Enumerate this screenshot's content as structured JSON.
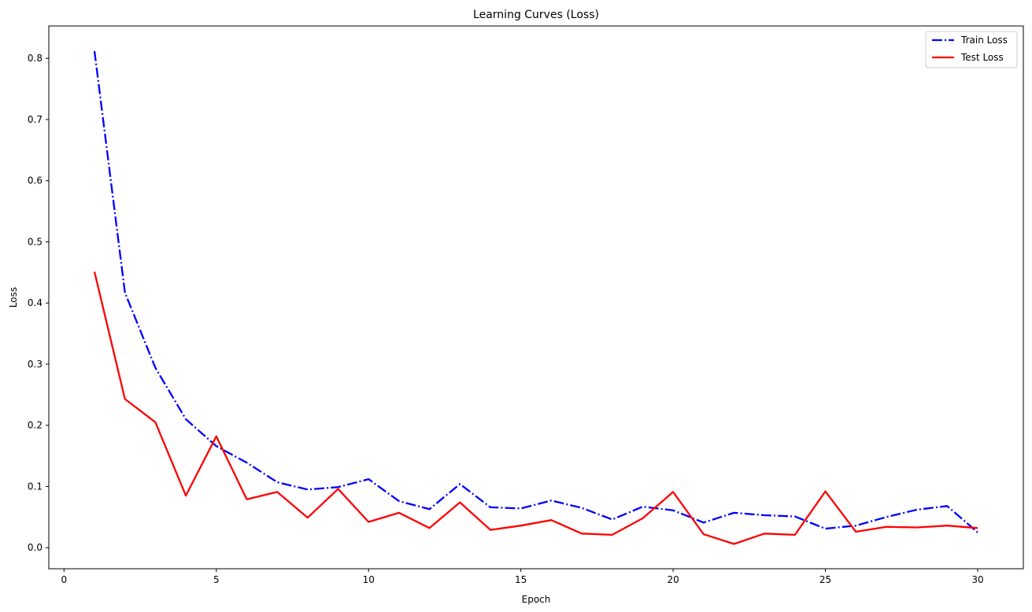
{
  "chart_data": {
    "type": "line",
    "title": "Learning Curves (Loss)",
    "xlabel": "Epoch",
    "ylabel": "Loss",
    "xlim": [
      -0.5,
      31.5
    ],
    "ylim": [
      -0.0345,
      0.853
    ],
    "xticks": [
      0,
      5,
      10,
      15,
      20,
      25,
      30
    ],
    "xtick_labels": [
      "0",
      "5",
      "10",
      "15",
      "20",
      "25",
      "30"
    ],
    "yticks": [
      0.0,
      0.1,
      0.2,
      0.3,
      0.4,
      0.5,
      0.6,
      0.7,
      0.8
    ],
    "ytick_labels": [
      "0.0",
      "0.1",
      "0.2",
      "0.3",
      "0.4",
      "0.5",
      "0.6",
      "0.7",
      "0.8"
    ],
    "grid": false,
    "legend_position": "top-right",
    "x": [
      1,
      2,
      3,
      4,
      5,
      6,
      7,
      8,
      9,
      10,
      11,
      12,
      13,
      14,
      15,
      16,
      17,
      18,
      19,
      20,
      21,
      22,
      23,
      24,
      25,
      26,
      27,
      28,
      29,
      30
    ],
    "series": [
      {
        "name": "Train Loss",
        "color": "#0000ff",
        "style": "dashdot",
        "values": [
          0.812,
          0.417,
          0.294,
          0.21,
          0.166,
          0.139,
          0.107,
          0.095,
          0.099,
          0.112,
          0.076,
          0.063,
          0.104,
          0.066,
          0.064,
          0.077,
          0.065,
          0.046,
          0.067,
          0.061,
          0.041,
          0.057,
          0.053,
          0.051,
          0.031,
          0.036,
          0.05,
          0.062,
          0.068,
          0.025
        ]
      },
      {
        "name": "Test Loss",
        "color": "#ff0000",
        "style": "solid",
        "values": [
          0.451,
          0.243,
          0.205,
          0.085,
          0.182,
          0.079,
          0.091,
          0.049,
          0.096,
          0.042,
          0.057,
          0.032,
          0.074,
          0.029,
          0.036,
          0.045,
          0.023,
          0.021,
          0.048,
          0.091,
          0.022,
          0.006,
          0.023,
          0.021,
          0.092,
          0.026,
          0.034,
          0.033,
          0.036,
          0.032
        ]
      }
    ]
  }
}
